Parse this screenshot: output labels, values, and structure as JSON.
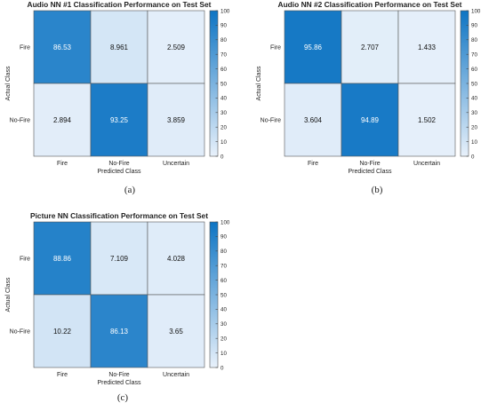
{
  "chart_data": [
    {
      "id": "a",
      "type": "heatmap",
      "title": "Audio NN #1 Classification Performance on Test Set",
      "xlabel": "Predicted Class",
      "ylabel": "Actual Class",
      "x_categories": [
        "Fire",
        "No-Fire",
        "Uncertain"
      ],
      "y_categories": [
        "Fire",
        "No-Fire"
      ],
      "values": [
        [
          86.53,
          8.961,
          2.509
        ],
        [
          2.894,
          93.25,
          3.859
        ]
      ],
      "cell_labels": [
        [
          "86.53",
          "8.961",
          "2.509"
        ],
        [
          "2.894",
          "93.25",
          "3.859"
        ]
      ],
      "colorbar": {
        "range": [
          0,
          100
        ],
        "ticks": [
          "0",
          "10",
          "20",
          "30",
          "40",
          "50",
          "60",
          "70",
          "80",
          "90",
          "100"
        ]
      },
      "caption": "(a)"
    },
    {
      "id": "b",
      "type": "heatmap",
      "title": "Audio NN #2 Classification Performance on Test Set",
      "xlabel": "Predicted Class",
      "ylabel": "Actual Class",
      "x_categories": [
        "Fire",
        "No-Fire",
        "Uncertain"
      ],
      "y_categories": [
        "Fire",
        "No-Fire"
      ],
      "values": [
        [
          95.86,
          2.707,
          1.433
        ],
        [
          3.604,
          94.89,
          1.502
        ]
      ],
      "cell_labels": [
        [
          "95.86",
          "2.707",
          "1.433"
        ],
        [
          "3.604",
          "94.89",
          "1.502"
        ]
      ],
      "colorbar": {
        "range": [
          0,
          100
        ],
        "ticks": [
          "0",
          "10",
          "20",
          "30",
          "40",
          "50",
          "60",
          "70",
          "80",
          "90",
          "100"
        ]
      },
      "caption": "(b)"
    },
    {
      "id": "c",
      "type": "heatmap",
      "title": "Picture NN Classification Performance on Test Set",
      "xlabel": "Predicted Class",
      "ylabel": "Actual Class",
      "x_categories": [
        "Fire",
        "No-Fire",
        "Uncertain"
      ],
      "y_categories": [
        "Fire",
        "No-Fire"
      ],
      "values": [
        [
          88.86,
          7.109,
          4.028
        ],
        [
          10.22,
          86.13,
          3.65
        ]
      ],
      "cell_labels": [
        [
          "88.86",
          "7.109",
          "4.028"
        ],
        [
          "10.22",
          "86.13",
          "3.65"
        ]
      ],
      "colorbar": {
        "range": [
          0,
          100
        ],
        "ticks": [
          "0",
          "10",
          "20",
          "30",
          "40",
          "50",
          "60",
          "70",
          "80",
          "90",
          "100"
        ]
      },
      "caption": "(c)"
    }
  ],
  "colors": {
    "low": "#e8f1fb",
    "high": "#0d74c3",
    "grid": "#555555"
  }
}
